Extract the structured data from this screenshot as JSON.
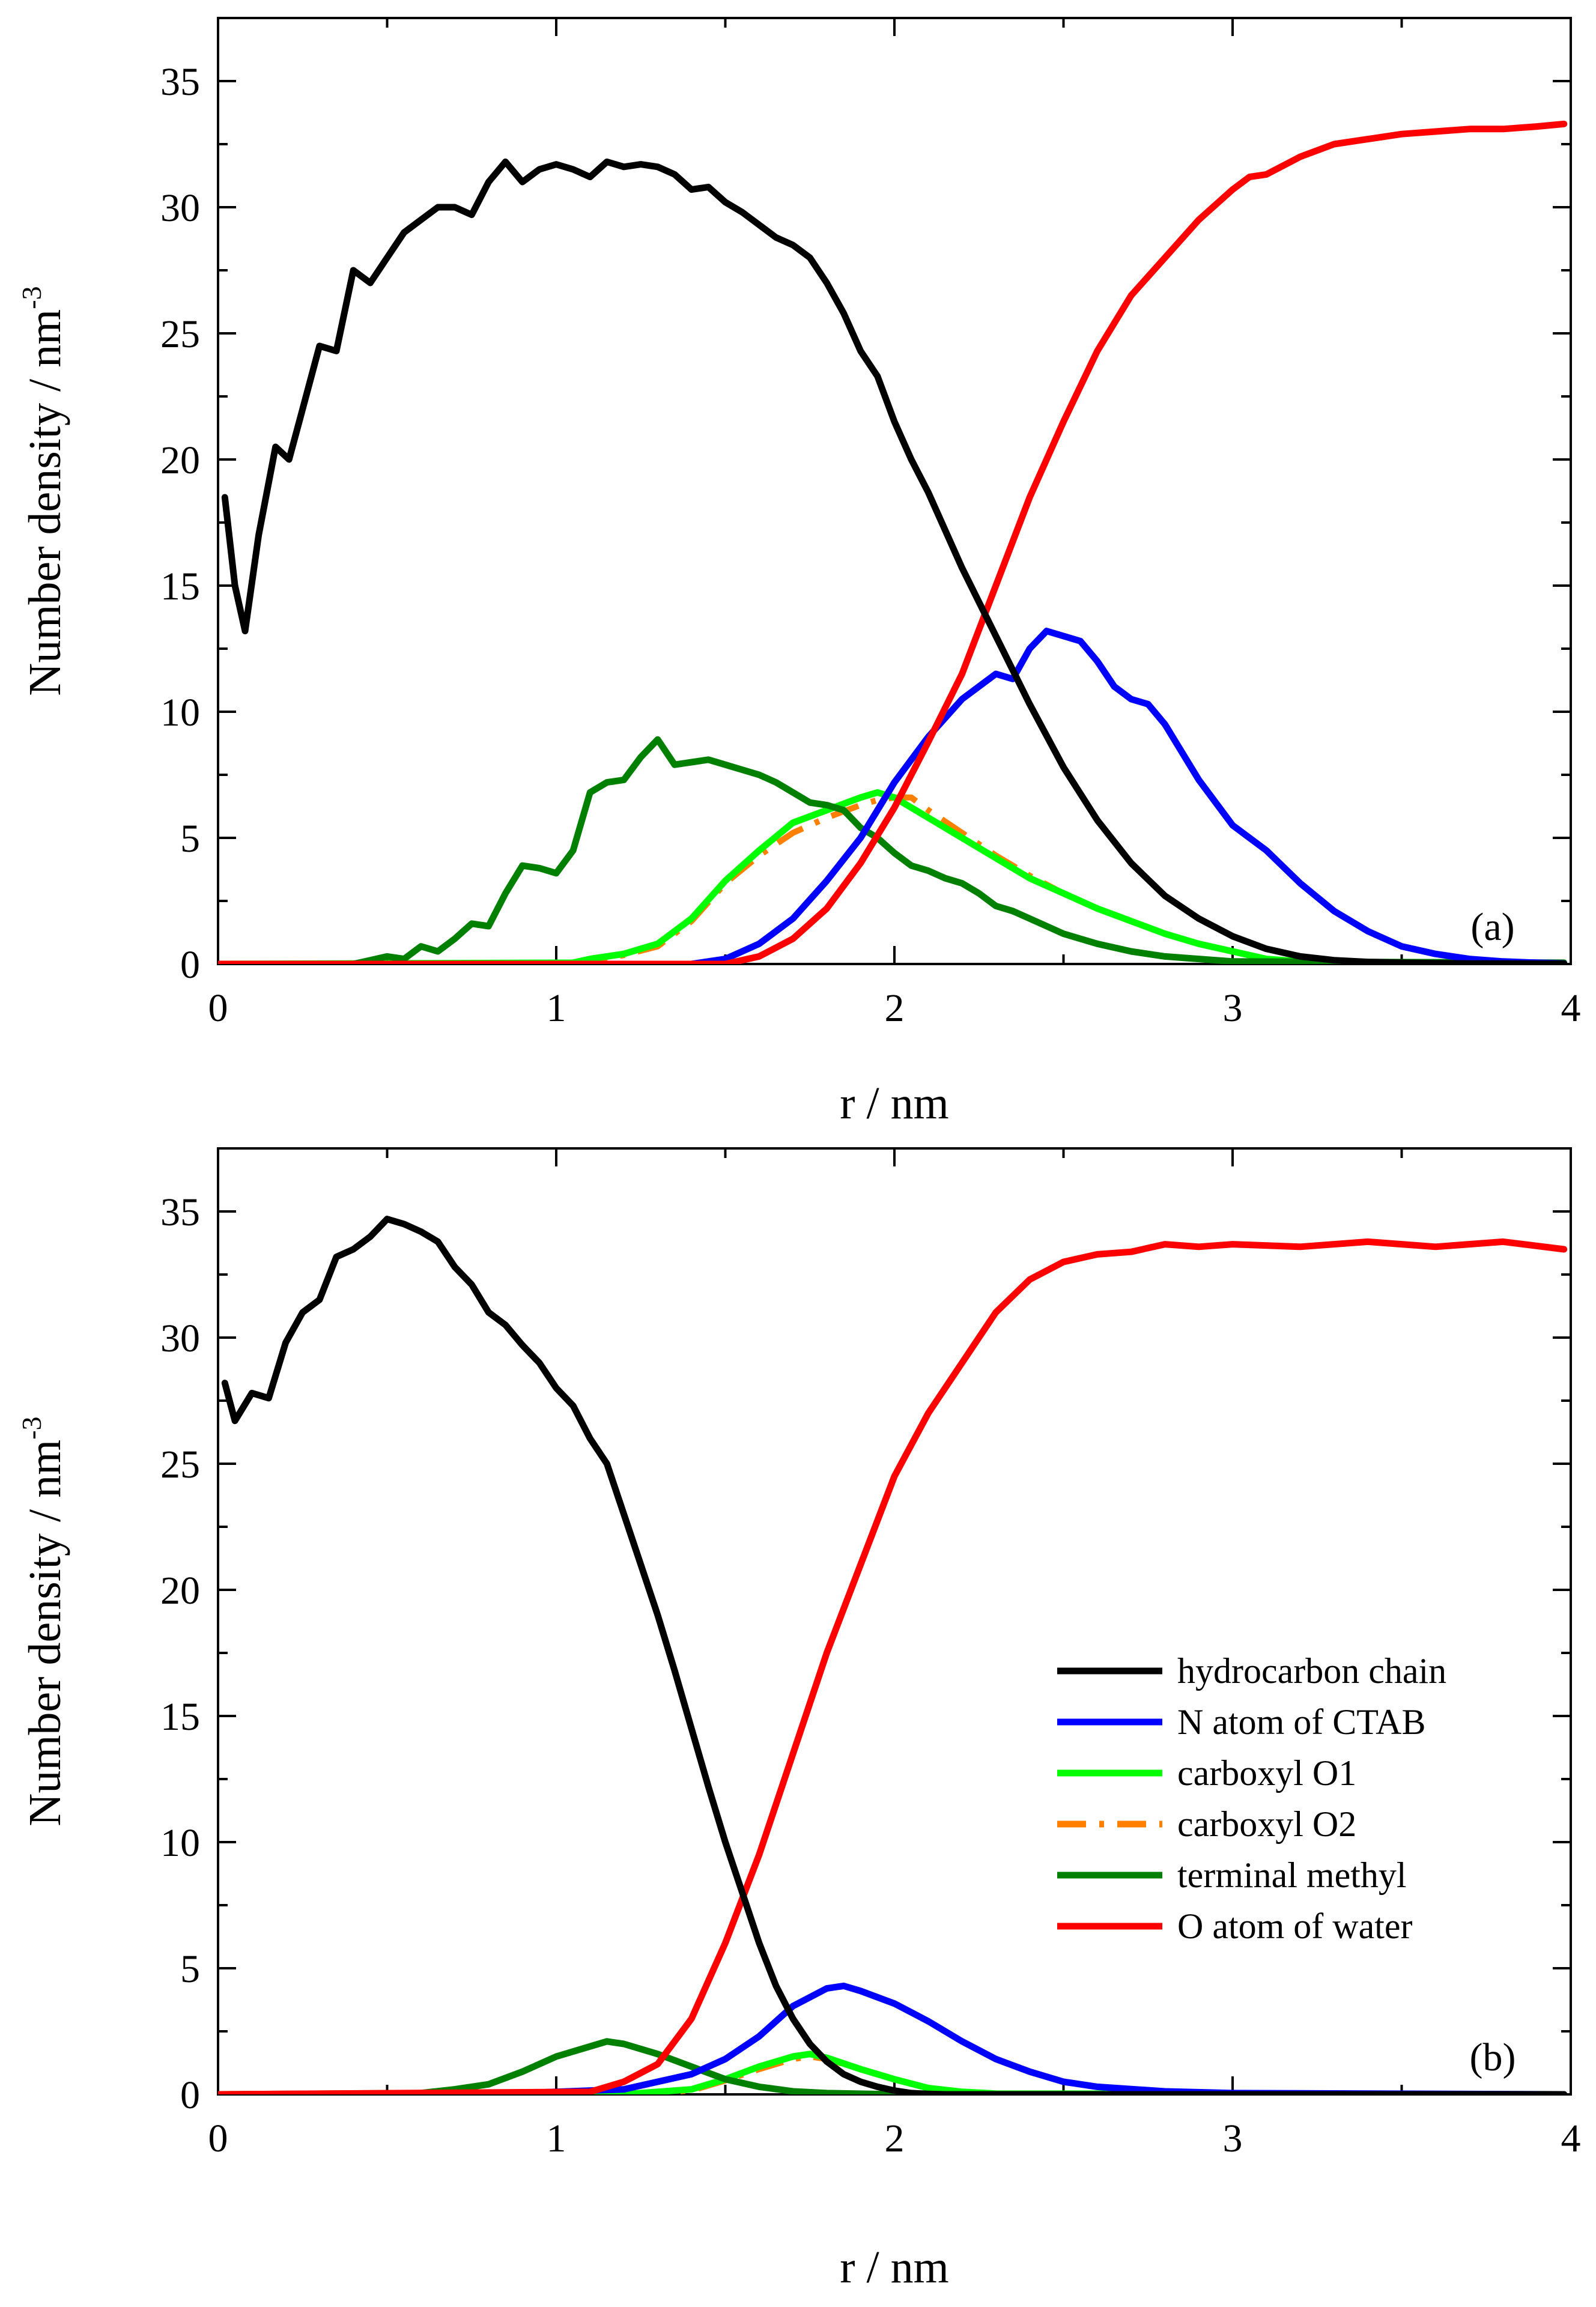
{
  "figure": {
    "xlabel": "r / nm",
    "ylabel_main": "Number density / nm",
    "ylabel_sup": "-3",
    "legend": [
      {
        "key": "hc",
        "label": "hydrocarbon chain"
      },
      {
        "key": "n",
        "label": "N atom of CTAB"
      },
      {
        "key": "o1",
        "label": "carboxyl O1"
      },
      {
        "key": "o2",
        "label": "carboxyl O2"
      },
      {
        "key": "me",
        "label": "terminal methyl"
      },
      {
        "key": "ow",
        "label": "O atom of water"
      }
    ],
    "series_colors": {
      "hc": "#000000",
      "n": "#0000ff",
      "o1": "#00ff00",
      "o2": "#ff8000",
      "me": "#008000",
      "ow": "#ff0000"
    }
  },
  "chart_data": [
    {
      "type": "line",
      "panel_label": "(a)",
      "xlabel": "r / nm",
      "ylabel": "Number density / nm^-3",
      "xlim": [
        0,
        4
      ],
      "ylim": [
        0,
        37.5
      ],
      "xticks": [
        0,
        1,
        2,
        3,
        4
      ],
      "yticks": [
        0,
        5,
        10,
        15,
        20,
        25,
        30,
        35
      ],
      "tick_labels_x": [
        "0",
        "1",
        "2",
        "3",
        "4"
      ],
      "tick_labels_y": [
        "0",
        "5",
        "10",
        "15",
        "20",
        "25",
        "30",
        "35"
      ],
      "series": [
        {
          "key": "hc",
          "name": "hydrocarbon chain",
          "x": [
            0.02,
            0.05,
            0.08,
            0.12,
            0.17,
            0.21,
            0.25,
            0.3,
            0.35,
            0.4,
            0.45,
            0.5,
            0.55,
            0.6,
            0.65,
            0.7,
            0.75,
            0.8,
            0.85,
            0.9,
            0.95,
            1.0,
            1.05,
            1.1,
            1.15,
            1.2,
            1.25,
            1.3,
            1.35,
            1.4,
            1.45,
            1.5,
            1.55,
            1.6,
            1.65,
            1.7,
            1.75,
            1.8,
            1.85,
            1.9,
            1.95,
            2.0,
            2.05,
            2.1,
            2.2,
            2.3,
            2.4,
            2.5,
            2.6,
            2.7,
            2.8,
            2.9,
            3.0,
            3.1,
            3.2,
            3.3,
            3.4,
            3.5,
            3.6,
            3.7,
            3.8,
            3.9,
            3.98
          ],
          "y": [
            18.5,
            15,
            13.2,
            17,
            20.5,
            20,
            22,
            24.5,
            24.3,
            27.5,
            27,
            28,
            29,
            29.5,
            30,
            30,
            29.7,
            31,
            31.8,
            31,
            31.5,
            31.7,
            31.5,
            31.2,
            31.8,
            31.6,
            31.7,
            31.6,
            31.3,
            30.7,
            30.8,
            30.2,
            29.8,
            29.3,
            28.8,
            28.5,
            28,
            27,
            25.8,
            24.3,
            23.3,
            21.5,
            20,
            18.7,
            15.7,
            13,
            10.3,
            7.8,
            5.7,
            4,
            2.7,
            1.8,
            1.1,
            0.6,
            0.3,
            0.15,
            0.08,
            0.05,
            0.03,
            0.02,
            0.02,
            0.01,
            0.01
          ]
        },
        {
          "key": "n",
          "name": "N atom of CTAB",
          "x": [
            0,
            1.4,
            1.5,
            1.6,
            1.7,
            1.8,
            1.9,
            2.0,
            2.1,
            2.2,
            2.3,
            2.35,
            2.4,
            2.45,
            2.5,
            2.55,
            2.6,
            2.65,
            2.7,
            2.75,
            2.8,
            2.9,
            3.0,
            3.1,
            3.2,
            3.3,
            3.4,
            3.5,
            3.6,
            3.7,
            3.8,
            3.9,
            3.98
          ],
          "y": [
            0,
            0,
            0.2,
            0.8,
            1.8,
            3.3,
            5,
            7.2,
            9,
            10.5,
            11.5,
            11.3,
            12.5,
            13.2,
            13,
            12.8,
            12,
            11,
            10.5,
            10.3,
            9.5,
            7.3,
            5.5,
            4.5,
            3.2,
            2.1,
            1.3,
            0.7,
            0.4,
            0.2,
            0.1,
            0.05,
            0.02
          ]
        },
        {
          "key": "o1",
          "name": "carboxyl O1",
          "x": [
            0,
            1.05,
            1.1,
            1.2,
            1.3,
            1.4,
            1.5,
            1.6,
            1.7,
            1.8,
            1.9,
            1.95,
            2.0,
            2.1,
            2.2,
            2.3,
            2.4,
            2.5,
            2.6,
            2.7,
            2.8,
            2.9,
            3.0,
            3.1,
            3.2,
            3.98
          ],
          "y": [
            0,
            0.05,
            0.2,
            0.4,
            0.8,
            1.8,
            3.3,
            4.5,
            5.6,
            6.1,
            6.6,
            6.8,
            6.6,
            5.8,
            5,
            4.2,
            3.4,
            2.8,
            2.2,
            1.7,
            1.2,
            0.8,
            0.5,
            0.2,
            0.1,
            0
          ]
        },
        {
          "key": "o2",
          "name": "carboxyl O2",
          "x": [
            0,
            1.05,
            1.1,
            1.2,
            1.3,
            1.4,
            1.5,
            1.6,
            1.7,
            1.8,
            1.9,
            1.95,
            2.0,
            2.05,
            2.1,
            2.2,
            2.3,
            2.4,
            2.5,
            2.6,
            2.7,
            2.8,
            2.9,
            3.0,
            3.1,
            3.2,
            3.98
          ],
          "y": [
            0,
            0.05,
            0.15,
            0.35,
            0.7,
            1.7,
            3.2,
            4.3,
            5.2,
            5.8,
            6.3,
            6.5,
            6.6,
            6.6,
            6.1,
            5.2,
            4.3,
            3.5,
            2.8,
            2.2,
            1.7,
            1.2,
            0.8,
            0.5,
            0.2,
            0.1,
            0
          ]
        },
        {
          "key": "me",
          "name": "terminal methyl",
          "x": [
            0,
            0.4,
            0.45,
            0.5,
            0.55,
            0.6,
            0.65,
            0.7,
            0.75,
            0.8,
            0.85,
            0.9,
            0.95,
            1.0,
            1.05,
            1.1,
            1.15,
            1.2,
            1.25,
            1.3,
            1.35,
            1.4,
            1.45,
            1.5,
            1.55,
            1.6,
            1.65,
            1.7,
            1.75,
            1.8,
            1.85,
            1.9,
            1.95,
            2.0,
            2.05,
            2.1,
            2.15,
            2.2,
            2.25,
            2.3,
            2.35,
            2.4,
            2.45,
            2.5,
            2.6,
            2.7,
            2.8,
            2.9,
            3.0,
            3.98
          ],
          "y": [
            0,
            0,
            0.15,
            0.3,
            0.2,
            0.7,
            0.5,
            1,
            1.6,
            1.5,
            2.8,
            3.9,
            3.8,
            3.6,
            4.5,
            6.8,
            7.2,
            7.3,
            8.2,
            8.9,
            7.9,
            8,
            8.1,
            7.9,
            7.7,
            7.5,
            7.2,
            6.8,
            6.4,
            6.3,
            6.1,
            5.4,
            5,
            4.4,
            3.9,
            3.7,
            3.4,
            3.2,
            2.8,
            2.3,
            2.1,
            1.8,
            1.5,
            1.2,
            0.8,
            0.5,
            0.3,
            0.2,
            0.1,
            0.05
          ]
        },
        {
          "key": "ow",
          "name": "O atom of water",
          "x": [
            0,
            1.5,
            1.6,
            1.7,
            1.8,
            1.9,
            2.0,
            2.1,
            2.2,
            2.3,
            2.4,
            2.5,
            2.6,
            2.7,
            2.8,
            2.9,
            3.0,
            3.05,
            3.1,
            3.2,
            3.3,
            3.4,
            3.5,
            3.6,
            3.7,
            3.8,
            3.9,
            3.98
          ],
          "y": [
            0,
            0,
            0.3,
            1,
            2.2,
            4,
            6.2,
            8.8,
            11.5,
            15,
            18.5,
            21.5,
            24.3,
            26.5,
            28,
            29.5,
            30.7,
            31.2,
            31.3,
            32,
            32.5,
            32.7,
            32.9,
            33,
            33.1,
            33.1,
            33.2,
            33.3
          ]
        }
      ]
    },
    {
      "type": "line",
      "panel_label": "(b)",
      "xlabel": "r / nm",
      "ylabel": "Number density / nm^-3",
      "xlim": [
        0,
        4
      ],
      "ylim": [
        0,
        37.5
      ],
      "xticks": [
        0,
        1,
        2,
        3,
        4
      ],
      "yticks": [
        0,
        5,
        10,
        15,
        20,
        25,
        30,
        35
      ],
      "tick_labels_x": [
        "0",
        "1",
        "2",
        "3",
        "4"
      ],
      "tick_labels_y": [
        "0",
        "5",
        "10",
        "15",
        "20",
        "25",
        "30",
        "35"
      ],
      "legend_position": "center-right",
      "series": [
        {
          "key": "hc",
          "name": "hydrocarbon chain",
          "x": [
            0.02,
            0.05,
            0.1,
            0.15,
            0.2,
            0.25,
            0.3,
            0.35,
            0.4,
            0.45,
            0.5,
            0.55,
            0.6,
            0.65,
            0.7,
            0.75,
            0.8,
            0.85,
            0.9,
            0.95,
            1.0,
            1.05,
            1.1,
            1.15,
            1.2,
            1.25,
            1.3,
            1.35,
            1.4,
            1.45,
            1.5,
            1.55,
            1.6,
            1.65,
            1.7,
            1.75,
            1.8,
            1.85,
            1.9,
            1.95,
            2.0,
            2.05,
            2.1,
            2.15,
            2.2,
            2.3,
            2.4,
            2.5,
            2.6,
            3.0,
            3.98
          ],
          "y": [
            28.2,
            26.7,
            27.8,
            27.6,
            29.8,
            31,
            31.5,
            33.2,
            33.5,
            34,
            34.7,
            34.5,
            34.2,
            33.8,
            32.8,
            32.1,
            31,
            30.5,
            29.7,
            29,
            28,
            27.3,
            26,
            25,
            23,
            21,
            19,
            16.8,
            14.5,
            12.2,
            10,
            8,
            6,
            4.3,
            3,
            2,
            1.3,
            0.8,
            0.5,
            0.3,
            0.15,
            0.05,
            0.02,
            0,
            0,
            0,
            0,
            0,
            0,
            0,
            0
          ]
        },
        {
          "key": "n",
          "name": "N atom of CTAB",
          "x": [
            0,
            0.8,
            1.0,
            1.2,
            1.4,
            1.5,
            1.6,
            1.7,
            1.8,
            1.85,
            1.9,
            2.0,
            2.1,
            2.2,
            2.3,
            2.4,
            2.5,
            2.6,
            2.8,
            3.0,
            3.98
          ],
          "y": [
            0,
            0,
            0.1,
            0.2,
            0.8,
            1.4,
            2.3,
            3.5,
            4.2,
            4.3,
            4.1,
            3.6,
            2.9,
            2.1,
            1.4,
            0.9,
            0.5,
            0.3,
            0.12,
            0.05,
            0
          ]
        },
        {
          "key": "o1",
          "name": "carboxyl O1",
          "x": [
            0,
            1.2,
            1.4,
            1.5,
            1.6,
            1.7,
            1.75,
            1.8,
            1.9,
            2.0,
            2.1,
            2.2,
            2.3,
            3.98
          ],
          "y": [
            0,
            0,
            0.2,
            0.6,
            1.1,
            1.5,
            1.6,
            1.45,
            1,
            0.6,
            0.25,
            0.1,
            0.03,
            0
          ]
        },
        {
          "key": "o2",
          "name": "carboxyl O2",
          "x": [
            0,
            1.2,
            1.4,
            1.5,
            1.6,
            1.7,
            1.75,
            1.8,
            1.9,
            2.0,
            2.1,
            2.2,
            2.3,
            3.98
          ],
          "y": [
            0,
            0,
            0.15,
            0.55,
            1,
            1.4,
            1.5,
            1.4,
            1,
            0.6,
            0.25,
            0.1,
            0.03,
            0
          ]
        },
        {
          "key": "me",
          "name": "terminal methyl",
          "x": [
            0,
            0.6,
            0.7,
            0.8,
            0.9,
            1.0,
            1.1,
            1.15,
            1.2,
            1.3,
            1.4,
            1.5,
            1.6,
            1.7,
            1.8,
            2.0,
            3.98
          ],
          "y": [
            0,
            0.05,
            0.2,
            0.4,
            0.9,
            1.5,
            1.9,
            2.1,
            2,
            1.6,
            1.1,
            0.6,
            0.3,
            0.12,
            0.05,
            0,
            0
          ]
        },
        {
          "key": "ow",
          "name": "O atom of water",
          "x": [
            0,
            1.1,
            1.2,
            1.3,
            1.4,
            1.5,
            1.6,
            1.7,
            1.8,
            1.9,
            2.0,
            2.1,
            2.2,
            2.3,
            2.4,
            2.5,
            2.6,
            2.7,
            2.8,
            2.9,
            3.0,
            3.2,
            3.4,
            3.6,
            3.8,
            3.98
          ],
          "y": [
            0,
            0.1,
            0.5,
            1.2,
            3,
            6,
            9.5,
            13.5,
            17.5,
            21,
            24.5,
            27,
            29,
            31,
            32.3,
            33,
            33.3,
            33.4,
            33.7,
            33.6,
            33.7,
            33.6,
            33.8,
            33.6,
            33.8,
            33.5
          ]
        }
      ]
    }
  ]
}
